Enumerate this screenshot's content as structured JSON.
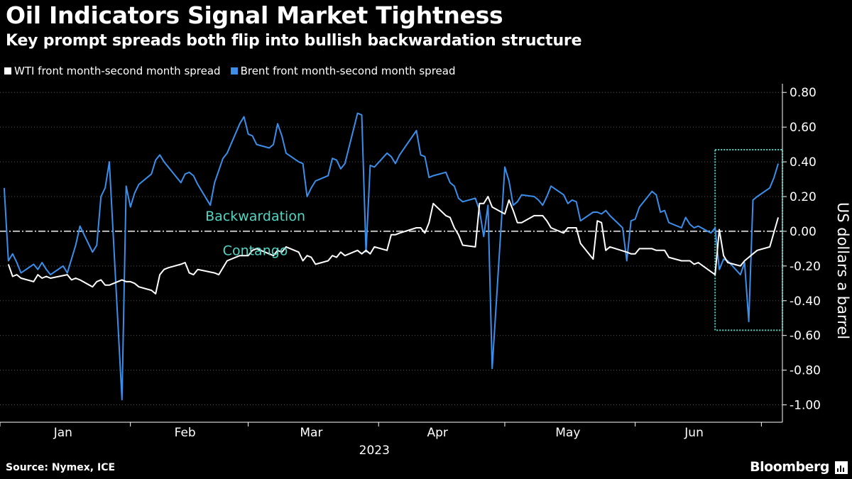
{
  "title": "Oil Indicators Signal Market Tightness",
  "subtitle": "Key prompt spreads both flip into bullish backwardation structure",
  "source": "Source: Nymex, ICE",
  "brand": "Bloomberg",
  "colors": {
    "background": "#000000",
    "wti": "#ffffff",
    "brent": "#3b8eea",
    "annotation": "#52d6c4",
    "zero_line": "#bbbbbb",
    "grid": "#555555"
  },
  "chart_data": {
    "type": "line",
    "xlabel": "2023",
    "ylabel": "US dollars a barrel",
    "ylim": [
      -1.1,
      0.85
    ],
    "y_ticks": [
      0.8,
      0.6,
      0.4,
      0.2,
      0.0,
      -0.2,
      -0.4,
      -0.6,
      -0.8,
      -1.0
    ],
    "y_tick_labels": [
      "0.80",
      "0.60",
      "0.40",
      "0.20",
      "0.00",
      "-0.20",
      "-0.40",
      "-0.60",
      "-0.80",
      "-1.00"
    ],
    "x_range": [
      "2023-01-01",
      "2023-07-06"
    ],
    "x_month_labels": [
      {
        "label": "Jan",
        "date": "2023-01-16"
      },
      {
        "label": "Feb",
        "date": "2023-02-14"
      },
      {
        "label": "Mar",
        "date": "2023-03-16"
      },
      {
        "label": "Apr",
        "date": "2023-04-15"
      },
      {
        "label": "May",
        "date": "2023-05-16"
      },
      {
        "label": "Jun",
        "date": "2023-06-15"
      }
    ],
    "x_tick_dates": [
      "2023-01-01",
      "2023-02-01",
      "2023-03-01",
      "2023-04-01",
      "2023-05-01",
      "2023-06-01",
      "2023-07-01"
    ],
    "annotations": [
      {
        "text": "Backwardation",
        "x": "2023-03-01",
        "y": 0.07
      },
      {
        "text": "Contango",
        "x": "2023-03-01",
        "y": -0.08
      }
    ],
    "highlight_box": {
      "x0": "2023-06-20",
      "x1": "2023-07-06",
      "y0": -0.57,
      "y1": 0.47
    },
    "series": [
      {
        "name": "WTI front month-second month spread",
        "points": [
          [
            "2023-01-03",
            -0.19
          ],
          [
            "2023-01-04",
            -0.26
          ],
          [
            "2023-01-05",
            -0.25
          ],
          [
            "2023-01-06",
            -0.27
          ],
          [
            "2023-01-09",
            -0.29
          ],
          [
            "2023-01-10",
            -0.25
          ],
          [
            "2023-01-11",
            -0.27
          ],
          [
            "2023-01-12",
            -0.26
          ],
          [
            "2023-01-13",
            -0.27
          ],
          [
            "2023-01-17",
            -0.25
          ],
          [
            "2023-01-18",
            -0.28
          ],
          [
            "2023-01-19",
            -0.27
          ],
          [
            "2023-01-20",
            -0.28
          ],
          [
            "2023-01-23",
            -0.32
          ],
          [
            "2023-01-24",
            -0.29
          ],
          [
            "2023-01-25",
            -0.28
          ],
          [
            "2023-01-26",
            -0.31
          ],
          [
            "2023-01-27",
            -0.31
          ],
          [
            "2023-01-30",
            -0.28
          ],
          [
            "2023-01-31",
            -0.29
          ],
          [
            "2023-02-01",
            -0.29
          ],
          [
            "2023-02-02",
            -0.3
          ],
          [
            "2023-02-03",
            -0.32
          ],
          [
            "2023-02-06",
            -0.34
          ],
          [
            "2023-02-07",
            -0.36
          ],
          [
            "2023-02-08",
            -0.25
          ],
          [
            "2023-02-09",
            -0.22
          ],
          [
            "2023-02-10",
            -0.21
          ],
          [
            "2023-02-13",
            -0.19
          ],
          [
            "2023-02-14",
            -0.18
          ],
          [
            "2023-02-15",
            -0.24
          ],
          [
            "2023-02-16",
            -0.25
          ],
          [
            "2023-02-17",
            -0.22
          ],
          [
            "2023-02-21",
            -0.24
          ],
          [
            "2023-02-22",
            -0.25
          ],
          [
            "2023-02-23",
            -0.21
          ],
          [
            "2023-02-24",
            -0.17
          ],
          [
            "2023-02-27",
            -0.14
          ],
          [
            "2023-02-28",
            -0.14
          ],
          [
            "2023-03-01",
            -0.14
          ],
          [
            "2023-03-02",
            -0.11
          ],
          [
            "2023-03-03",
            -0.1
          ],
          [
            "2023-03-06",
            -0.13
          ],
          [
            "2023-03-07",
            -0.14
          ],
          [
            "2023-03-08",
            -0.11
          ],
          [
            "2023-03-09",
            -0.12
          ],
          [
            "2023-03-10",
            -0.09
          ],
          [
            "2023-03-13",
            -0.12
          ],
          [
            "2023-03-14",
            -0.17
          ],
          [
            "2023-03-15",
            -0.14
          ],
          [
            "2023-03-16",
            -0.15
          ],
          [
            "2023-03-17",
            -0.19
          ],
          [
            "2023-03-20",
            -0.17
          ],
          [
            "2023-03-21",
            -0.14
          ],
          [
            "2023-03-22",
            -0.15
          ],
          [
            "2023-03-23",
            -0.12
          ],
          [
            "2023-03-24",
            -0.14
          ],
          [
            "2023-03-27",
            -0.11
          ],
          [
            "2023-03-28",
            -0.13
          ],
          [
            "2023-03-29",
            -0.11
          ],
          [
            "2023-03-30",
            -0.13
          ],
          [
            "2023-03-31",
            -0.09
          ],
          [
            "2023-04-03",
            -0.11
          ],
          [
            "2023-04-04",
            -0.02
          ],
          [
            "2023-04-05",
            -0.02
          ],
          [
            "2023-04-06",
            -0.01
          ],
          [
            "2023-04-10",
            0.02
          ],
          [
            "2023-04-11",
            0.02
          ],
          [
            "2023-04-12",
            -0.01
          ],
          [
            "2023-04-13",
            0.05
          ],
          [
            "2023-04-14",
            0.16
          ],
          [
            "2023-04-17",
            0.09
          ],
          [
            "2023-04-18",
            0.08
          ],
          [
            "2023-04-19",
            0.02
          ],
          [
            "2023-04-20",
            -0.02
          ],
          [
            "2023-04-21",
            -0.08
          ],
          [
            "2023-04-24",
            -0.09
          ],
          [
            "2023-04-25",
            0.16
          ],
          [
            "2023-04-26",
            0.16
          ],
          [
            "2023-04-27",
            0.2
          ],
          [
            "2023-04-28",
            0.14
          ],
          [
            "2023-05-01",
            0.1
          ],
          [
            "2023-05-02",
            0.18
          ],
          [
            "2023-05-03",
            0.12
          ],
          [
            "2023-05-04",
            0.05
          ],
          [
            "2023-05-05",
            0.05
          ],
          [
            "2023-05-08",
            0.09
          ],
          [
            "2023-05-09",
            0.09
          ],
          [
            "2023-05-10",
            0.09
          ],
          [
            "2023-05-11",
            0.06
          ],
          [
            "2023-05-12",
            0.02
          ],
          [
            "2023-05-15",
            -0.01
          ],
          [
            "2023-05-16",
            0.02
          ],
          [
            "2023-05-17",
            0.02
          ],
          [
            "2023-05-18",
            0.02
          ],
          [
            "2023-05-19",
            -0.07
          ],
          [
            "2023-05-22",
            -0.16
          ],
          [
            "2023-05-23",
            0.06
          ],
          [
            "2023-05-24",
            0.05
          ],
          [
            "2023-05-25",
            -0.11
          ],
          [
            "2023-05-26",
            -0.09
          ],
          [
            "2023-05-30",
            -0.12
          ],
          [
            "2023-05-31",
            -0.13
          ],
          [
            "2023-06-01",
            -0.13
          ],
          [
            "2023-06-02",
            -0.1
          ],
          [
            "2023-06-05",
            -0.1
          ],
          [
            "2023-06-06",
            -0.11
          ],
          [
            "2023-06-07",
            -0.11
          ],
          [
            "2023-06-08",
            -0.11
          ],
          [
            "2023-06-09",
            -0.15
          ],
          [
            "2023-06-12",
            -0.17
          ],
          [
            "2023-06-13",
            -0.17
          ],
          [
            "2023-06-14",
            -0.17
          ],
          [
            "2023-06-15",
            -0.19
          ],
          [
            "2023-06-16",
            -0.18
          ],
          [
            "2023-06-20",
            -0.25
          ],
          [
            "2023-06-21",
            0.01
          ],
          [
            "2023-06-22",
            -0.14
          ],
          [
            "2023-06-23",
            -0.18
          ],
          [
            "2023-06-26",
            -0.2
          ],
          [
            "2023-06-27",
            -0.17
          ],
          [
            "2023-06-28",
            -0.15
          ],
          [
            "2023-06-29",
            -0.13
          ],
          [
            "2023-06-30",
            -0.11
          ],
          [
            "2023-07-03",
            -0.09
          ],
          [
            "2023-07-05",
            0.08
          ]
        ]
      },
      {
        "name": "Brent front month-second month spread",
        "points": [
          [
            "2023-01-02",
            0.25
          ],
          [
            "2023-01-03",
            -0.17
          ],
          [
            "2023-01-04",
            -0.13
          ],
          [
            "2023-01-05",
            -0.18
          ],
          [
            "2023-01-06",
            -0.24
          ],
          [
            "2023-01-09",
            -0.19
          ],
          [
            "2023-01-10",
            -0.22
          ],
          [
            "2023-01-11",
            -0.18
          ],
          [
            "2023-01-12",
            -0.22
          ],
          [
            "2023-01-13",
            -0.25
          ],
          [
            "2023-01-16",
            -0.2
          ],
          [
            "2023-01-17",
            -0.24
          ],
          [
            "2023-01-18",
            -0.16
          ],
          [
            "2023-01-19",
            -0.08
          ],
          [
            "2023-01-20",
            0.03
          ],
          [
            "2023-01-23",
            -0.12
          ],
          [
            "2023-01-24",
            -0.08
          ],
          [
            "2023-01-25",
            0.2
          ],
          [
            "2023-01-26",
            0.25
          ],
          [
            "2023-01-27",
            0.4
          ],
          [
            "2023-01-30",
            -0.97
          ],
          [
            "2023-01-31",
            0.26
          ],
          [
            "2023-02-01",
            0.14
          ],
          [
            "2023-02-02",
            0.22
          ],
          [
            "2023-02-03",
            0.27
          ],
          [
            "2023-02-06",
            0.33
          ],
          [
            "2023-02-07",
            0.41
          ],
          [
            "2023-02-08",
            0.44
          ],
          [
            "2023-02-09",
            0.4
          ],
          [
            "2023-02-10",
            0.37
          ],
          [
            "2023-02-13",
            0.28
          ],
          [
            "2023-02-14",
            0.33
          ],
          [
            "2023-02-15",
            0.34
          ],
          [
            "2023-02-16",
            0.32
          ],
          [
            "2023-02-17",
            0.27
          ],
          [
            "2023-02-20",
            0.15
          ],
          [
            "2023-02-21",
            0.28
          ],
          [
            "2023-02-22",
            0.35
          ],
          [
            "2023-02-23",
            0.42
          ],
          [
            "2023-02-24",
            0.45
          ],
          [
            "2023-02-27",
            0.62
          ],
          [
            "2023-02-28",
            0.66
          ],
          [
            "2023-03-01",
            0.56
          ],
          [
            "2023-03-02",
            0.55
          ],
          [
            "2023-03-03",
            0.5
          ],
          [
            "2023-03-06",
            0.48
          ],
          [
            "2023-03-07",
            0.5
          ],
          [
            "2023-03-08",
            0.62
          ],
          [
            "2023-03-09",
            0.55
          ],
          [
            "2023-03-10",
            0.45
          ],
          [
            "2023-03-13",
            0.4
          ],
          [
            "2023-03-14",
            0.39
          ],
          [
            "2023-03-15",
            0.2
          ],
          [
            "2023-03-16",
            0.25
          ],
          [
            "2023-03-17",
            0.29
          ],
          [
            "2023-03-20",
            0.32
          ],
          [
            "2023-03-21",
            0.42
          ],
          [
            "2023-03-22",
            0.41
          ],
          [
            "2023-03-23",
            0.36
          ],
          [
            "2023-03-24",
            0.39
          ],
          [
            "2023-03-27",
            0.68
          ],
          [
            "2023-03-28",
            0.67
          ],
          [
            "2023-03-29",
            -0.12
          ],
          [
            "2023-03-30",
            0.38
          ],
          [
            "2023-03-31",
            0.37
          ],
          [
            "2023-04-03",
            0.45
          ],
          [
            "2023-04-04",
            0.43
          ],
          [
            "2023-04-05",
            0.39
          ],
          [
            "2023-04-06",
            0.44
          ],
          [
            "2023-04-10",
            0.58
          ],
          [
            "2023-04-11",
            0.44
          ],
          [
            "2023-04-12",
            0.43
          ],
          [
            "2023-04-13",
            0.31
          ],
          [
            "2023-04-14",
            0.32
          ],
          [
            "2023-04-17",
            0.34
          ],
          [
            "2023-04-18",
            0.28
          ],
          [
            "2023-04-19",
            0.26
          ],
          [
            "2023-04-20",
            0.19
          ],
          [
            "2023-04-21",
            0.17
          ],
          [
            "2023-04-24",
            0.19
          ],
          [
            "2023-04-25",
            0.12
          ],
          [
            "2023-04-26",
            -0.03
          ],
          [
            "2023-04-27",
            0.15
          ],
          [
            "2023-04-28",
            -0.79
          ],
          [
            "2023-05-01",
            0.37
          ],
          [
            "2023-05-02",
            0.29
          ],
          [
            "2023-05-03",
            0.15
          ],
          [
            "2023-05-04",
            0.17
          ],
          [
            "2023-05-05",
            0.21
          ],
          [
            "2023-05-08",
            0.2
          ],
          [
            "2023-05-09",
            0.18
          ],
          [
            "2023-05-10",
            0.15
          ],
          [
            "2023-05-11",
            0.2
          ],
          [
            "2023-05-12",
            0.26
          ],
          [
            "2023-05-15",
            0.21
          ],
          [
            "2023-05-16",
            0.16
          ],
          [
            "2023-05-17",
            0.18
          ],
          [
            "2023-05-18",
            0.17
          ],
          [
            "2023-05-19",
            0.06
          ],
          [
            "2023-05-22",
            0.11
          ],
          [
            "2023-05-23",
            0.11
          ],
          [
            "2023-05-24",
            0.1
          ],
          [
            "2023-05-25",
            0.12
          ],
          [
            "2023-05-26",
            0.09
          ],
          [
            "2023-05-29",
            0.02
          ],
          [
            "2023-05-30",
            -0.17
          ],
          [
            "2023-05-31",
            0.06
          ],
          [
            "2023-06-01",
            0.07
          ],
          [
            "2023-06-02",
            0.14
          ],
          [
            "2023-06-05",
            0.23
          ],
          [
            "2023-06-06",
            0.21
          ],
          [
            "2023-06-07",
            0.11
          ],
          [
            "2023-06-08",
            0.12
          ],
          [
            "2023-06-09",
            0.05
          ],
          [
            "2023-06-12",
            0.02
          ],
          [
            "2023-06-13",
            0.08
          ],
          [
            "2023-06-14",
            0.04
          ],
          [
            "2023-06-15",
            0.02
          ],
          [
            "2023-06-16",
            0.03
          ],
          [
            "2023-06-19",
            -0.01
          ],
          [
            "2023-06-20",
            0.02
          ],
          [
            "2023-06-21",
            -0.22
          ],
          [
            "2023-06-22",
            -0.16
          ],
          [
            "2023-06-23",
            -0.17
          ],
          [
            "2023-06-26",
            -0.25
          ],
          [
            "2023-06-27",
            -0.18
          ],
          [
            "2023-06-28",
            -0.52
          ],
          [
            "2023-06-29",
            0.18
          ],
          [
            "2023-06-30",
            0.2
          ],
          [
            "2023-07-03",
            0.25
          ],
          [
            "2023-07-04",
            0.31
          ],
          [
            "2023-07-05",
            0.39
          ]
        ]
      }
    ]
  }
}
